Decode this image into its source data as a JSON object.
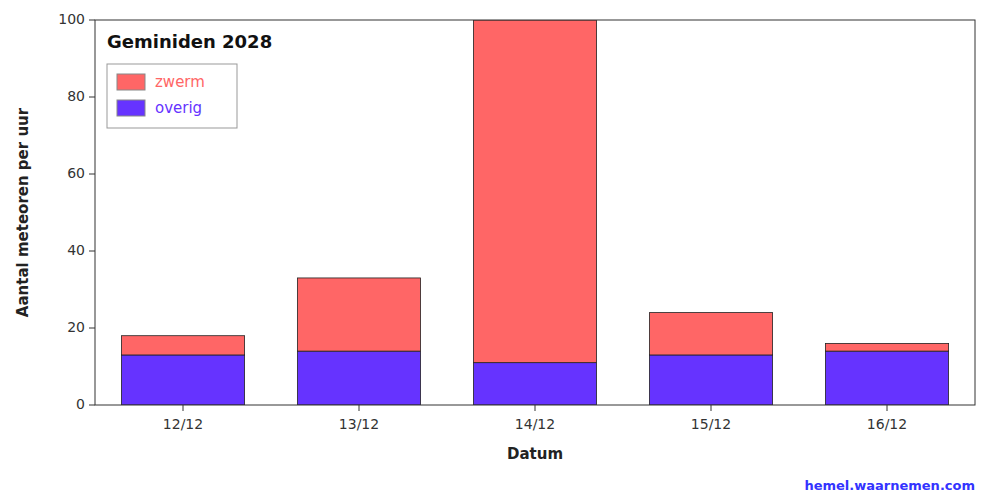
{
  "chart_data": {
    "type": "bar",
    "stacked": true,
    "title": "Geminiden 2028",
    "xlabel": "Datum",
    "ylabel": "Aantal meteoren per uur",
    "categories": [
      "12/12",
      "13/12",
      "14/12",
      "15/12",
      "16/12"
    ],
    "series": [
      {
        "name": "overig",
        "color": "#6633FF",
        "values": [
          13,
          14,
          11,
          13,
          14
        ]
      },
      {
        "name": "zwerm",
        "color": "#FF6666",
        "values": [
          5,
          19,
          89,
          11,
          2
        ]
      }
    ],
    "ylim": [
      0,
      100
    ],
    "yticks": [
      0,
      20,
      40,
      60,
      80,
      100
    ],
    "grid": false,
    "legend": "upper left",
    "annotations": [
      {
        "text": "hemel.waarnemen.com",
        "color": "#3333FF"
      }
    ]
  }
}
